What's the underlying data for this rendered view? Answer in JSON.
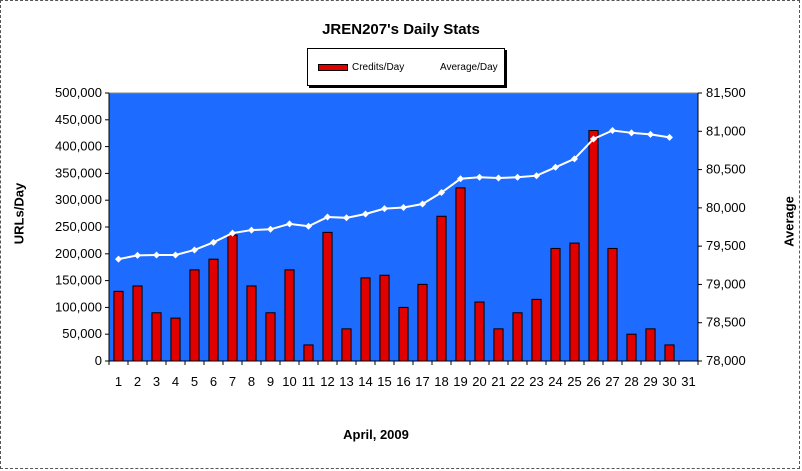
{
  "chart_data": {
    "type": "bar",
    "title": "JREN207's Daily Stats",
    "xlabel": "April, 2009",
    "ylabel": "URLs/Day",
    "y2label": "Average",
    "categories": [
      "1",
      "2",
      "3",
      "4",
      "5",
      "6",
      "7",
      "8",
      "9",
      "10",
      "11",
      "12",
      "13",
      "14",
      "15",
      "16",
      "17",
      "18",
      "19",
      "20",
      "21",
      "22",
      "23",
      "24",
      "25",
      "26",
      "27",
      "28",
      "29",
      "30",
      "31"
    ],
    "ylim": [
      0,
      500000
    ],
    "y2lim": [
      78000,
      81500
    ],
    "yticks": [
      "0",
      "50,000",
      "100,000",
      "150,000",
      "200,000",
      "250,000",
      "300,000",
      "350,000",
      "400,000",
      "450,000",
      "500,000"
    ],
    "y2ticks": [
      "78,000",
      "78,500",
      "79,000",
      "79,500",
      "80,000",
      "80,500",
      "81,000",
      "81,500"
    ],
    "series": [
      {
        "name": "Credits/Day",
        "kind": "bar",
        "axis": "left",
        "color": "#e00000",
        "values": [
          130000,
          140000,
          90000,
          80000,
          170000,
          190000,
          235000,
          140000,
          90000,
          170000,
          30000,
          240000,
          60000,
          155000,
          160000,
          100000,
          143000,
          270000,
          323000,
          110000,
          60000,
          90000,
          115000,
          210000,
          220000,
          430000,
          210000,
          50000,
          60000,
          30000,
          null
        ]
      },
      {
        "name": "Average/Day",
        "kind": "line",
        "axis": "right",
        "color": "#ffffff",
        "values": [
          79330,
          79380,
          79385,
          79385,
          79450,
          79550,
          79670,
          79710,
          79720,
          79790,
          79760,
          79880,
          79870,
          79920,
          79990,
          80005,
          80050,
          80200,
          80380,
          80400,
          80390,
          80400,
          80420,
          80530,
          80640,
          80900,
          81010,
          80980,
          80960,
          80920,
          null
        ]
      }
    ],
    "plot_background": "#1e6bff",
    "legend_position": "top-center",
    "grid": false
  }
}
